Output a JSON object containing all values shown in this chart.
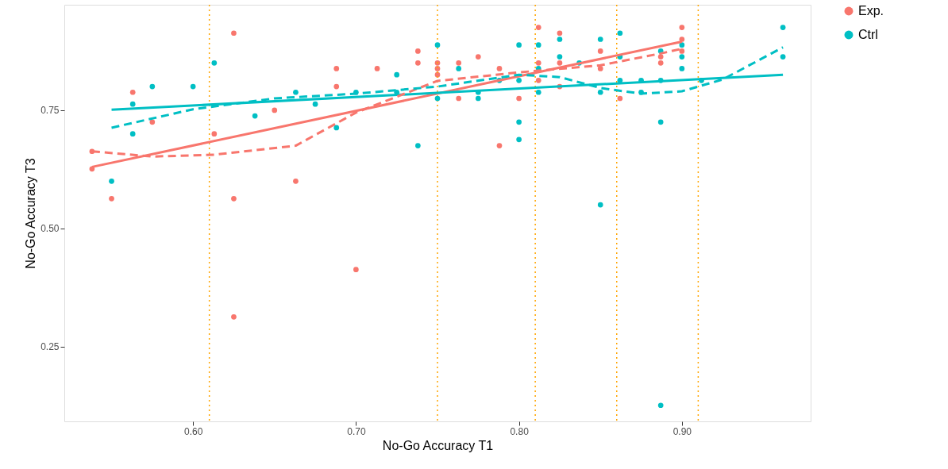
{
  "chart_data": {
    "type": "scatter",
    "xlabel": "No-Go Accuracy T1",
    "ylabel": "No-Go Accuracy T3",
    "xlim": [
      0.521,
      0.979
    ],
    "ylim": [
      0.092,
      0.973
    ],
    "xticks": [
      {
        "value": 0.6,
        "label": "0.60"
      },
      {
        "value": 0.7,
        "label": "0.70"
      },
      {
        "value": 0.8,
        "label": "0.80"
      },
      {
        "value": 0.9,
        "label": "0.90"
      }
    ],
    "yticks": [
      {
        "value": 0.25,
        "label": "0.25"
      },
      {
        "value": 0.5,
        "label": "0.50"
      },
      {
        "value": 0.75,
        "label": "0.75"
      }
    ],
    "grid": false,
    "legend": "right",
    "ref_lines": [
      {
        "axis": "x",
        "value": 0.61,
        "color": "#ffa500",
        "line_style": "dotted"
      },
      {
        "axis": "x",
        "value": 0.75,
        "color": "#ffa500",
        "line_style": "dotted"
      },
      {
        "axis": "x",
        "value": 0.81,
        "color": "#ffa500",
        "line_style": "dotted"
      },
      {
        "axis": "x",
        "value": 0.86,
        "color": "#ffa500",
        "line_style": "dotted"
      },
      {
        "axis": "x",
        "value": 0.91,
        "color": "#ffa500",
        "line_style": "dotted"
      }
    ],
    "series": [
      {
        "name": "Exp.",
        "marker": "circle",
        "color": "#f8766d",
        "x": [
          0.538,
          0.538,
          0.55,
          0.563,
          0.575,
          0.613,
          0.625,
          0.625,
          0.625,
          0.65,
          0.663,
          0.688,
          0.688,
          0.7,
          0.713,
          0.738,
          0.738,
          0.75,
          0.75,
          0.75,
          0.763,
          0.763,
          0.775,
          0.788,
          0.788,
          0.8,
          0.812,
          0.812,
          0.812,
          0.825,
          0.825,
          0.825,
          0.85,
          0.85,
          0.862,
          0.887,
          0.887,
          0.9,
          0.9,
          0.9
        ],
        "values": [
          0.663,
          0.626,
          0.563,
          0.788,
          0.725,
          0.7,
          0.913,
          0.563,
          0.313,
          0.75,
          0.6,
          0.838,
          0.8,
          0.413,
          0.838,
          0.875,
          0.85,
          0.85,
          0.838,
          0.825,
          0.85,
          0.775,
          0.863,
          0.838,
          0.675,
          0.775,
          0.925,
          0.85,
          0.813,
          0.913,
          0.85,
          0.8,
          0.875,
          0.838,
          0.775,
          0.863,
          0.85,
          0.925,
          0.9,
          0.875
        ]
      },
      {
        "name": "Ctrl",
        "marker": "circle",
        "color": "#00bfc4",
        "x": [
          0.55,
          0.563,
          0.563,
          0.575,
          0.6,
          0.613,
          0.638,
          0.663,
          0.675,
          0.688,
          0.7,
          0.725,
          0.725,
          0.738,
          0.75,
          0.75,
          0.763,
          0.775,
          0.775,
          0.788,
          0.8,
          0.8,
          0.8,
          0.8,
          0.812,
          0.812,
          0.812,
          0.825,
          0.825,
          0.837,
          0.85,
          0.85,
          0.85,
          0.862,
          0.862,
          0.862,
          0.875,
          0.875,
          0.887,
          0.887,
          0.887,
          0.887,
          0.9,
          0.9,
          0.9,
          0.912,
          0.962,
          0.962
        ],
        "values": [
          0.6,
          0.763,
          0.7,
          0.8,
          0.8,
          0.85,
          0.738,
          0.788,
          0.763,
          0.713,
          0.788,
          0.825,
          0.788,
          0.675,
          0.888,
          0.775,
          0.838,
          0.788,
          0.775,
          0.813,
          0.888,
          0.813,
          0.725,
          0.688,
          0.888,
          0.838,
          0.788,
          0.9,
          0.863,
          0.85,
          0.9,
          0.788,
          0.55,
          0.913,
          0.863,
          0.813,
          0.813,
          0.788,
          0.875,
          0.813,
          0.725,
          0.126,
          0.888,
          0.863,
          0.838,
          0.813,
          0.925,
          0.863
        ]
      },
      {
        "type": "line",
        "color": "#f8766d",
        "line_style": "solid",
        "x": [
          0.538,
          0.9
        ],
        "values": [
          0.63,
          0.895
        ]
      },
      {
        "type": "line",
        "color": "#00bfc4",
        "line_style": "solid",
        "x": [
          0.55,
          0.962
        ],
        "values": [
          0.751,
          0.825
        ]
      },
      {
        "type": "line",
        "color": "#f8766d",
        "line_style": "dashed",
        "x": [
          0.538,
          0.575,
          0.613,
          0.663,
          0.7,
          0.75,
          0.8,
          0.85,
          0.887,
          0.9
        ],
        "values": [
          0.663,
          0.652,
          0.656,
          0.675,
          0.745,
          0.812,
          0.83,
          0.845,
          0.87,
          0.88
        ]
      },
      {
        "type": "line",
        "color": "#00bfc4",
        "line_style": "dashed",
        "x": [
          0.55,
          0.6,
          0.65,
          0.7,
          0.75,
          0.8,
          0.825,
          0.85,
          0.875,
          0.9,
          0.925,
          0.962
        ],
        "values": [
          0.713,
          0.752,
          0.775,
          0.785,
          0.8,
          0.825,
          0.82,
          0.797,
          0.785,
          0.79,
          0.815,
          0.883
        ]
      }
    ]
  }
}
